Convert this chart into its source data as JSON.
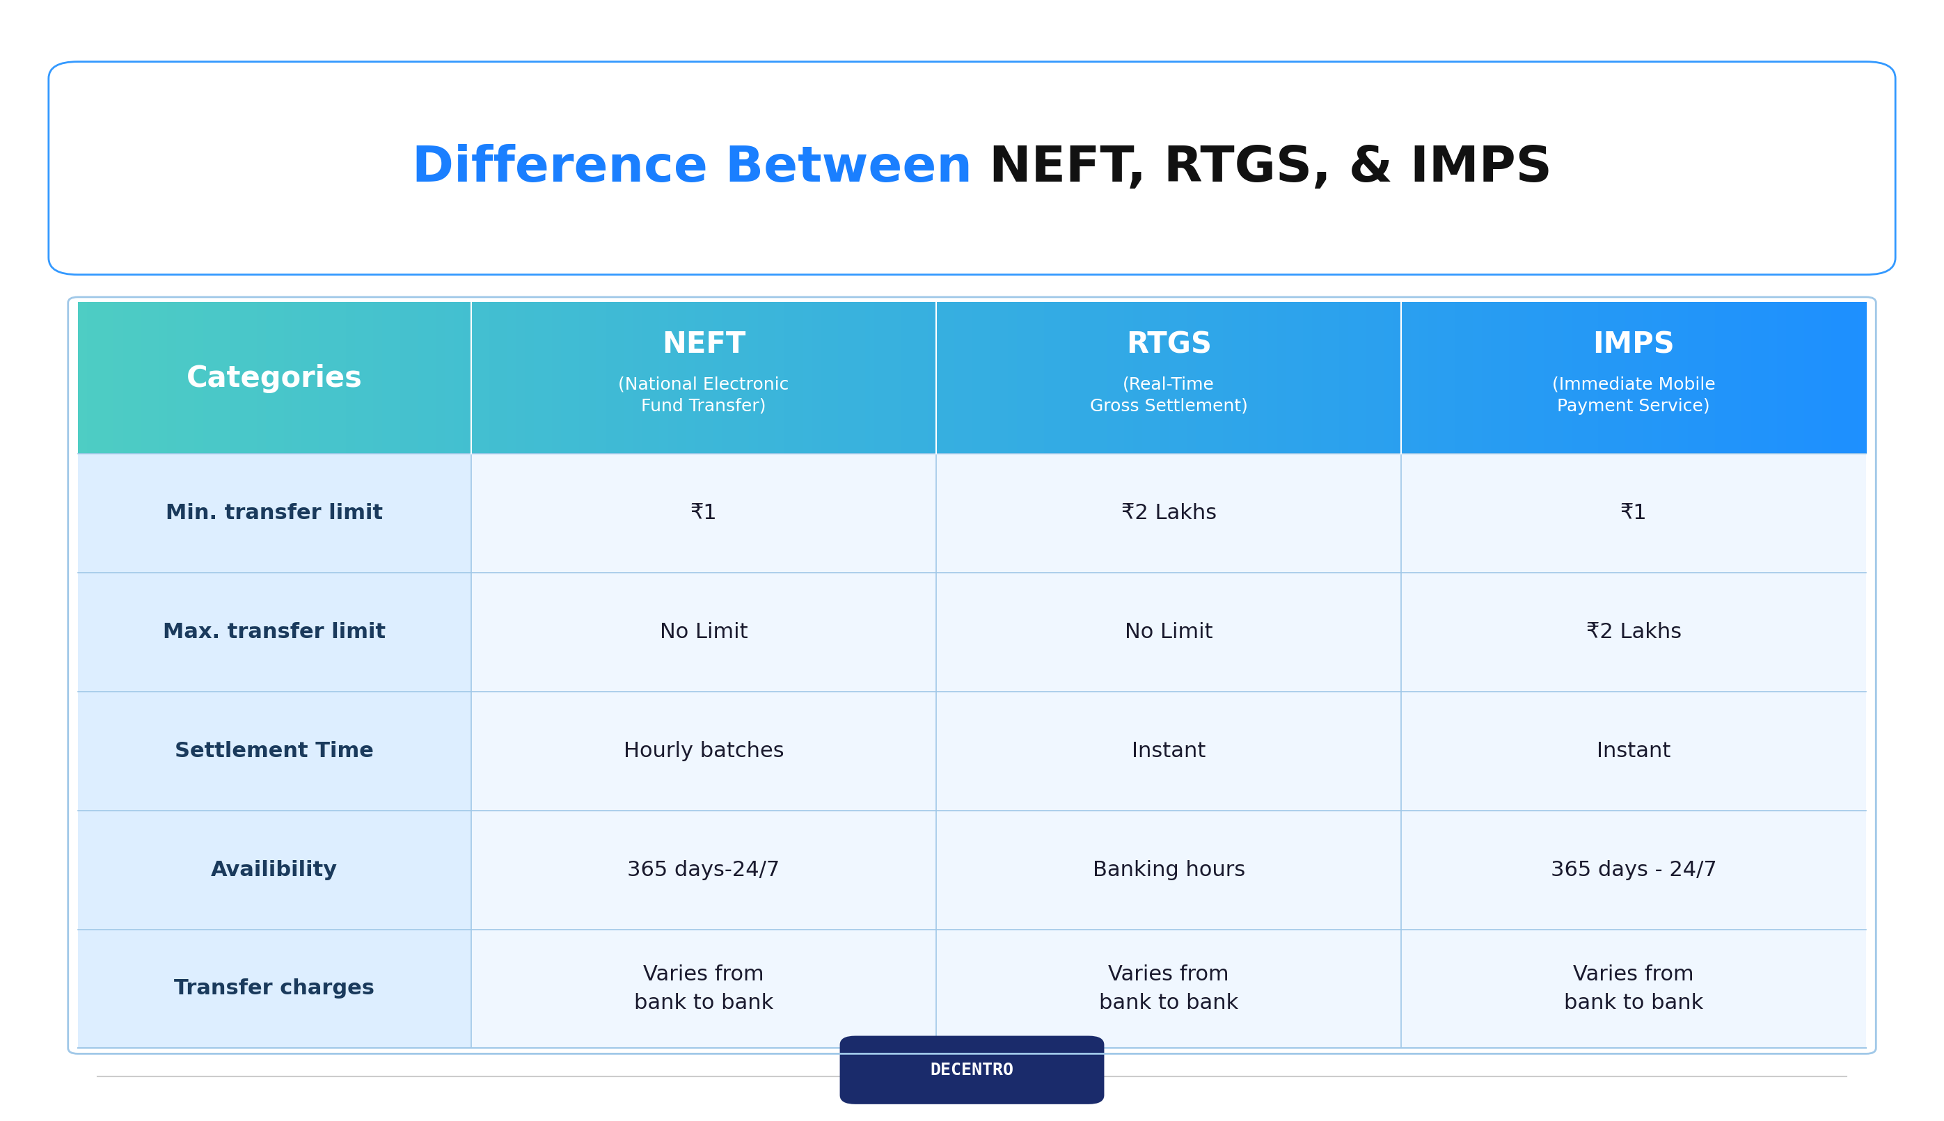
{
  "title_blue": "Difference Between",
  "title_black": " NEFT, RTGS, & IMPS",
  "title_fontsize": 52,
  "bg_color": "#ffffff",
  "header_col0": "Categories",
  "header_col1": "NEFT\n(National Electronic\nFund Transfer)",
  "header_col2": "RTGS\n(Real-Time\nGross Settlement)",
  "header_col3": "IMPS\n(Immediate Mobile\nPayment Service)",
  "rows": [
    [
      "Min. transfer limit",
      "₹1",
      "₹2 Lakhs",
      "₹1"
    ],
    [
      "Max. transfer limit",
      "No Limit",
      "No Limit",
      "₹2 Lakhs"
    ],
    [
      "Settlement Time",
      "Hourly batches",
      "Instant",
      "Instant"
    ],
    [
      "Availibility",
      "365 days-24/7",
      "Banking hours",
      "365 days - 24/7"
    ],
    [
      "Transfer charges",
      "Varies from\nbank to bank",
      "Varies from\nbank to bank",
      "Varies from\nbank to bank"
    ]
  ],
  "header_grad_left": "#4ecdc4",
  "header_grad_right": "#1e90ff",
  "header_text_color": "#ffffff",
  "row_bg_col0": "#ddeeff",
  "row_bg_rest": "#f0f7ff",
  "row_alt_bg": "#e8f4ff",
  "cell_text_color": "#1a1a2e",
  "col0_bold_color": "#1a3a5c",
  "grid_color": "#a0c8e8",
  "decentro_bg": "#1a2b6b",
  "decentro_text": "#ffffff",
  "footer_line_color": "#cccccc"
}
